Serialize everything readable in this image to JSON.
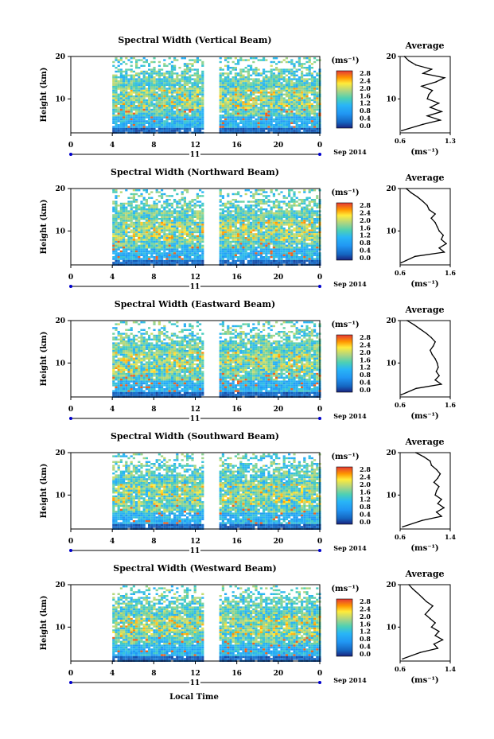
{
  "figure": {
    "xlabel": "Local Time",
    "date_label": "Sep 2014",
    "day_label": "11",
    "ylabel": "Height (km)",
    "avg_title": "Average"
  },
  "chart_data": [
    {
      "type": "heatmap",
      "title": "Spectral Width (Vertical Beam)",
      "xlabel": "Local Time",
      "ylabel": "Height (km)",
      "x_ticks": [
        "0",
        "4",
        "8",
        "12",
        "16",
        "20",
        "0"
      ],
      "y_ticks": [
        "20",
        "10"
      ],
      "xlim": [
        0,
        24
      ],
      "ylim": [
        2,
        20
      ],
      "data_gap_hours": [
        0,
        4,
        12.6,
        14.3
      ],
      "colorbar": {
        "unit": "(ms⁻¹)",
        "ticks": [
          "2.8",
          "2.4",
          "2.0",
          "1.6",
          "1.2",
          "0.8",
          "0.4",
          "0.0"
        ],
        "range": [
          0,
          2.8
        ]
      },
      "average": {
        "title": "Average",
        "unit": "(ms⁻¹)",
        "x_ticks": [
          "0.6",
          "1.3"
        ],
        "xlim": [
          0.6,
          1.3
        ],
        "heights": [
          2.5,
          4,
          5,
          6,
          7,
          8,
          9,
          10,
          11,
          12,
          13,
          14,
          15,
          16,
          17,
          18,
          19,
          20
        ],
        "values": [
          0.62,
          0.92,
          1.16,
          0.98,
          1.18,
          1.02,
          1.14,
          0.98,
          1.0,
          1.05,
          0.9,
          1.1,
          1.22,
          0.92,
          1.04,
          0.82,
          0.72,
          0.66
        ]
      }
    },
    {
      "type": "heatmap",
      "title": "Spectral Width (Northward Beam)",
      "xlabel": "Local Time",
      "ylabel": "Height (km)",
      "x_ticks": [
        "0",
        "4",
        "8",
        "12",
        "16",
        "20",
        "0"
      ],
      "y_ticks": [
        "20",
        "10"
      ],
      "xlim": [
        0,
        24
      ],
      "ylim": [
        2,
        20
      ],
      "data_gap_hours": [
        0,
        4,
        12.6,
        14.3
      ],
      "colorbar": {
        "unit": "(ms⁻¹)",
        "ticks": [
          "2.8",
          "2.4",
          "2.0",
          "1.6",
          "1.2",
          "0.8",
          "0.4",
          "0.0"
        ],
        "range": [
          0,
          2.8
        ]
      },
      "average": {
        "title": "Average",
        "unit": "(ms⁻¹)",
        "x_ticks": [
          "0.6",
          "1.6"
        ],
        "xlim": [
          0.6,
          1.6
        ],
        "heights": [
          2.5,
          4,
          5,
          6,
          7,
          8,
          9,
          10,
          11,
          12,
          13,
          14,
          15,
          16,
          17,
          18,
          19,
          20
        ],
        "values": [
          0.62,
          0.9,
          1.48,
          1.38,
          1.52,
          1.42,
          1.46,
          1.38,
          1.34,
          1.3,
          1.22,
          1.3,
          1.18,
          1.14,
          1.05,
          0.95,
          0.82,
          0.72
        ]
      }
    },
    {
      "type": "heatmap",
      "title": "Spectral Width (Eastward Beam)",
      "xlabel": "Local Time",
      "ylabel": "Height (km)",
      "x_ticks": [
        "0",
        "4",
        "8",
        "12",
        "16",
        "20",
        "0"
      ],
      "y_ticks": [
        "20",
        "10"
      ],
      "xlim": [
        0,
        24
      ],
      "ylim": [
        2,
        20
      ],
      "data_gap_hours": [
        0,
        4,
        12.6,
        14.3
      ],
      "colorbar": {
        "unit": "(ms⁻¹)",
        "ticks": [
          "2.8",
          "2.4",
          "2.0",
          "1.6",
          "1.2",
          "0.8",
          "0.4",
          "0.0"
        ],
        "range": [
          0,
          2.8
        ]
      },
      "average": {
        "title": "Average",
        "unit": "(ms⁻¹)",
        "x_ticks": [
          "0.6",
          "1.6"
        ],
        "xlim": [
          0.6,
          1.6
        ],
        "heights": [
          2.5,
          4,
          5,
          6,
          7,
          8,
          9,
          10,
          11,
          12,
          13,
          14,
          15,
          16,
          17,
          18,
          19,
          20
        ],
        "values": [
          0.62,
          0.92,
          1.42,
          1.3,
          1.38,
          1.32,
          1.36,
          1.34,
          1.3,
          1.24,
          1.2,
          1.26,
          1.3,
          1.22,
          1.12,
          1.0,
          0.88,
          0.74
        ]
      }
    },
    {
      "type": "heatmap",
      "title": "Spectral Width (Southward Beam)",
      "xlabel": "Local Time",
      "ylabel": "Height (km)",
      "x_ticks": [
        "0",
        "4",
        "8",
        "12",
        "16",
        "20",
        "0"
      ],
      "y_ticks": [
        "20",
        "10"
      ],
      "xlim": [
        0,
        24
      ],
      "ylim": [
        2,
        20
      ],
      "data_gap_hours": [
        0,
        4,
        12.6,
        14.3
      ],
      "colorbar": {
        "unit": "(ms⁻¹)",
        "ticks": [
          "2.8",
          "2.4",
          "2.0",
          "1.6",
          "1.2",
          "0.8",
          "0.4",
          "0.0"
        ],
        "range": [
          0,
          2.8
        ]
      },
      "average": {
        "title": "Average",
        "unit": "(ms⁻¹)",
        "x_ticks": [
          "0.6",
          "1.4"
        ],
        "xlim": [
          0.6,
          1.4
        ],
        "heights": [
          2.5,
          4,
          5,
          6,
          7,
          8,
          9,
          10,
          11,
          12,
          13,
          14,
          15,
          16,
          17,
          18,
          19,
          20
        ],
        "values": [
          0.64,
          0.95,
          1.26,
          1.18,
          1.3,
          1.2,
          1.26,
          1.16,
          1.18,
          1.22,
          1.14,
          1.2,
          1.24,
          1.18,
          1.1,
          1.08,
          0.98,
          0.85
        ]
      }
    },
    {
      "type": "heatmap",
      "title": "Spectral Width (Westward Beam)",
      "xlabel": "Local Time",
      "ylabel": "Height (km)",
      "x_ticks": [
        "0",
        "4",
        "8",
        "12",
        "16",
        "20",
        "0"
      ],
      "y_ticks": [
        "20",
        "10"
      ],
      "xlim": [
        0,
        24
      ],
      "ylim": [
        2,
        20
      ],
      "data_gap_hours": [
        0,
        4,
        12.6,
        14.3
      ],
      "colorbar": {
        "unit": "(ms⁻¹)",
        "ticks": [
          "2.8",
          "2.4",
          "2.0",
          "1.6",
          "1.2",
          "0.8",
          "0.4",
          "0.0"
        ],
        "range": [
          0,
          2.8
        ]
      },
      "average": {
        "title": "Average",
        "unit": "(ms⁻¹)",
        "x_ticks": [
          "0.6",
          "1.4"
        ],
        "xlim": [
          0.6,
          1.4
        ],
        "heights": [
          2.5,
          4,
          5,
          6,
          7,
          8,
          9,
          10,
          11,
          12,
          13,
          14,
          15,
          16,
          17,
          18,
          19,
          20
        ],
        "values": [
          0.64,
          0.92,
          1.2,
          1.14,
          1.28,
          1.16,
          1.22,
          1.1,
          1.16,
          1.08,
          1.0,
          1.06,
          1.12,
          1.02,
          0.95,
          0.88,
          0.8,
          0.74
        ]
      }
    }
  ]
}
